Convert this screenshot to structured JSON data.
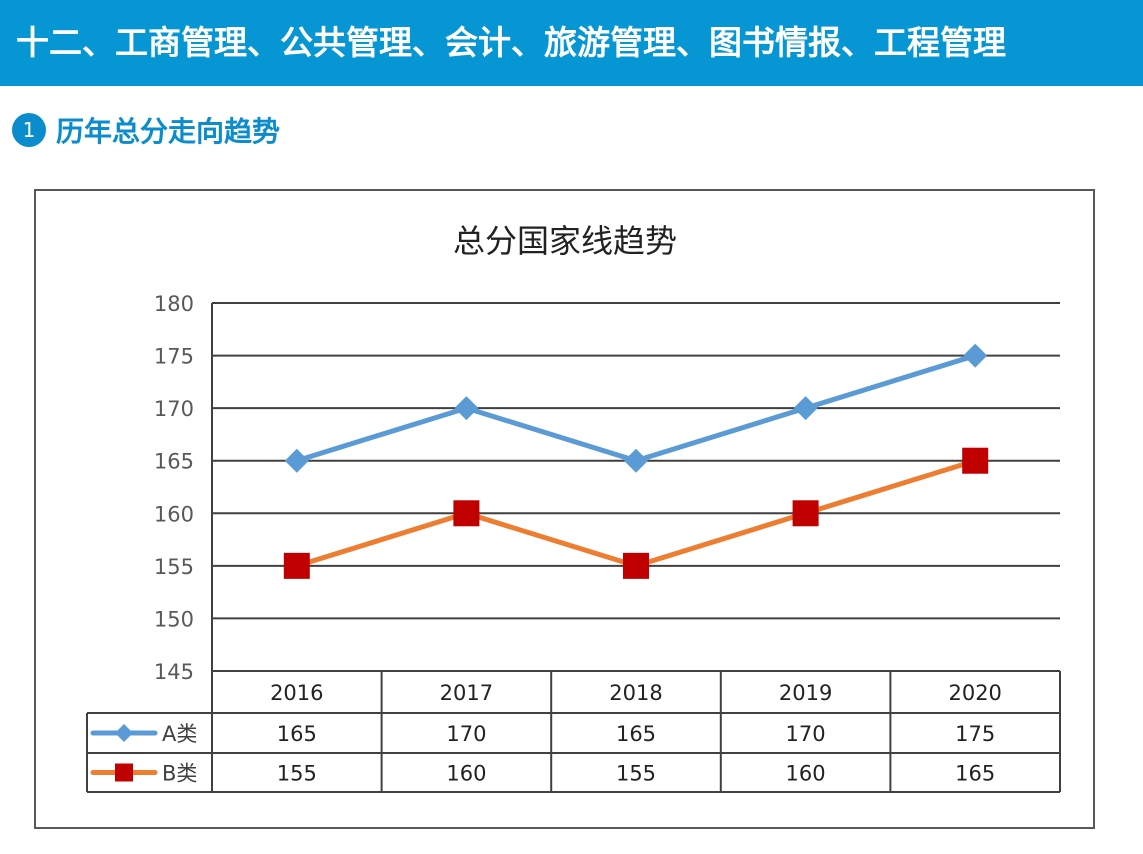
{
  "header": {
    "title": "十二、工商管理、公共管理、会计、旅游管理、图书情报、工程管理"
  },
  "section": {
    "number": "1",
    "title": "历年总分走向趋势"
  },
  "chart_data": {
    "type": "line",
    "title": "总分国家线趋势",
    "categories": [
      "2016",
      "2017",
      "2018",
      "2019",
      "2020"
    ],
    "ylim": [
      145,
      180
    ],
    "yticks": [
      "145",
      "150",
      "155",
      "160",
      "165",
      "170",
      "175",
      "180"
    ],
    "grid": true,
    "legend": "data-table",
    "series": [
      {
        "name": "A类",
        "values": [
          165,
          170,
          165,
          170,
          175
        ],
        "color": "#5b9bd5",
        "marker": "diamond"
      },
      {
        "name": "B类",
        "values": [
          155,
          160,
          155,
          160,
          165
        ],
        "color": "#ed7d31",
        "marker": "square",
        "marker_color": "#c00000"
      }
    ]
  }
}
